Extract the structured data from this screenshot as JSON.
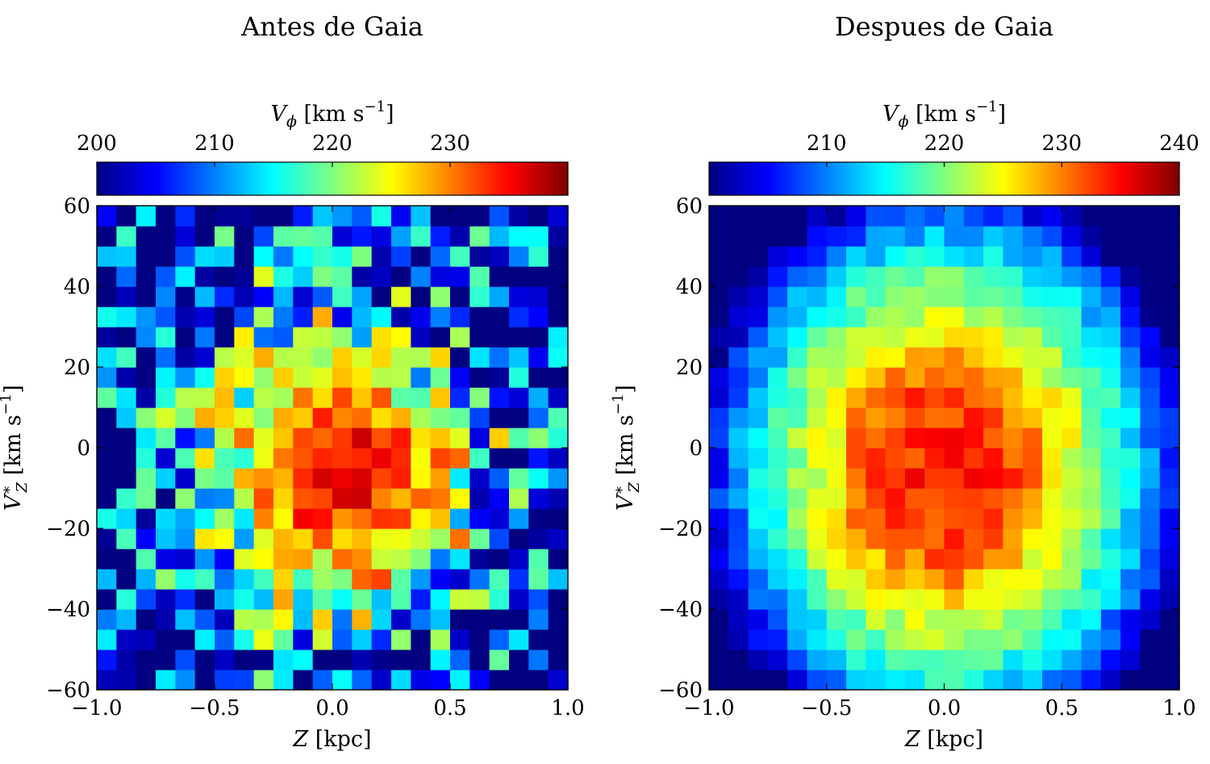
{
  "chart_data": [
    {
      "type": "heatmap",
      "title": "Antes de Gaia",
      "xlabel": "Z [kpc]",
      "ylabel": "V*_Z [km s^-1]",
      "xlim": [
        -1.0,
        1.0
      ],
      "ylim": [
        -60,
        60
      ],
      "x_tick_labels": [
        "−1.0",
        "−0.5",
        "0.0",
        "0.5",
        "1.0"
      ],
      "y_tick_labels": [
        "−60",
        "−40",
        "−20",
        "0",
        "20",
        "40",
        "60"
      ],
      "colorbar": {
        "label": "V_φ [km s^-1]",
        "range": [
          200,
          240
        ],
        "tick_labels": [
          "200",
          "210",
          "220",
          "230"
        ],
        "colormap": "jet"
      },
      "grid": {
        "nx": 24,
        "ny": 24,
        "bin_width_kpc": 0.0833,
        "bin_height_kms": 5
      },
      "description": "Peak V_phi ~232-238 km/s in core (Z -0.4..0.4, Vz -30..25), noisy low values (~200-210) at edges"
    },
    {
      "type": "heatmap",
      "title": "Despues de Gaia",
      "xlabel": "Z [kpc]",
      "ylabel": "V*_Z [km s^-1]",
      "xlim": [
        -1.0,
        1.0
      ],
      "ylim": [
        -60,
        60
      ],
      "x_tick_labels": [
        "−1.0",
        "−0.5",
        "0.0",
        "0.5",
        "1.0"
      ],
      "y_tick_labels": [
        "−60",
        "−40",
        "−20",
        "0",
        "20",
        "40",
        "60"
      ],
      "colorbar": {
        "label": "V_φ [km s^-1]",
        "range": [
          200,
          240
        ],
        "tick_labels": [
          "210",
          "220",
          "230",
          "240"
        ],
        "colormap": "jet"
      },
      "grid": {
        "nx": 24,
        "ny": 24,
        "bin_width_kpc": 0.0833,
        "bin_height_kms": 5
      },
      "description": "Smooth elliptical pattern; center ~232 km/s, falling to ~205 km/s at corners"
    }
  ]
}
